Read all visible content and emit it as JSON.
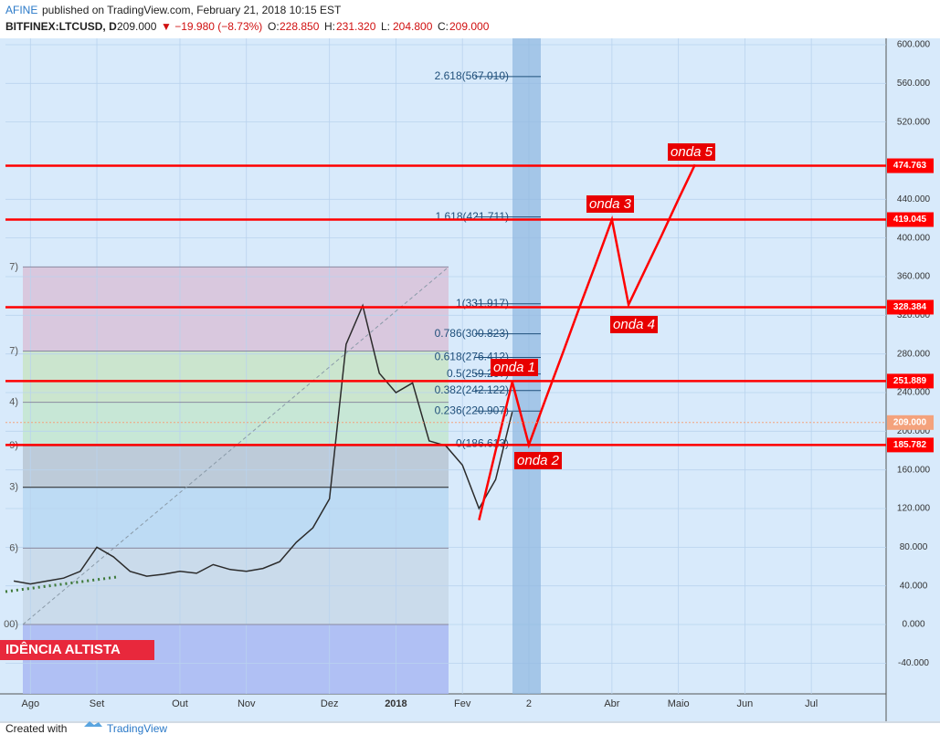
{
  "header": {
    "author": "AFINE",
    "published": "published on TradingView.com, February 21, 2018 10:15 EST",
    "symbol": "BITFINEX:LTCUSD, D",
    "price": "209.000",
    "change": "▼ −19.980 (−8.73%)",
    "ohlc": [
      {
        "key": "O:",
        "val": "228.850"
      },
      {
        "key": "H:",
        "val": "231.320"
      },
      {
        "key": "L:",
        "val": "204.800"
      },
      {
        "key": "C:",
        "val": "209.000"
      }
    ]
  },
  "footer": {
    "created": "Created with",
    "brand": "TradingView"
  },
  "chart_data": {
    "type": "line",
    "categories": [
      null,
      "Ago",
      null,
      null,
      null,
      "Set",
      null,
      null,
      null,
      null,
      "Out",
      null,
      null,
      null,
      "Nov",
      null,
      null,
      null,
      null,
      "Dez",
      null,
      null,
      null,
      "2018",
      null,
      null,
      null,
      "Fev",
      null,
      null,
      null,
      "2",
      null,
      null,
      null,
      null,
      "Abr",
      null,
      null,
      null,
      "Maio",
      null,
      null,
      null,
      "Jun",
      null,
      null,
      null,
      "Jul",
      null,
      null,
      null,
      null
    ],
    "series": [
      {
        "color": "#2b2b2b",
        "values": [
          45,
          42,
          45,
          48,
          55,
          80,
          70,
          55,
          50,
          52,
          55,
          53,
          62,
          57,
          55,
          58,
          65,
          85,
          100,
          130,
          290,
          330,
          260,
          240,
          250,
          190,
          185,
          165,
          120,
          150,
          220,
          null,
          null,
          null,
          null,
          null,
          null,
          null,
          null,
          null,
          null,
          null,
          null,
          null,
          null,
          null,
          null,
          null,
          null,
          null,
          null,
          null,
          null
        ]
      },
      {
        "color": "#ff0000",
        "values": [
          null,
          null,
          null,
          null,
          null,
          null,
          null,
          null,
          null,
          null,
          null,
          null,
          null,
          null,
          null,
          null,
          null,
          null,
          null,
          null,
          null,
          null,
          null,
          null,
          null,
          null,
          null,
          null,
          108,
          180,
          251,
          186,
          233,
          279,
          326,
          372,
          419,
          331,
          367,
          403,
          440,
          476,
          null,
          null,
          null,
          null,
          null,
          null,
          null,
          null,
          null,
          null,
          null
        ]
      }
    ],
    "ylim": [
      -71.8,
      606.6
    ],
    "yticks": [
      {
        "value": 600,
        "label": "600.000"
      },
      {
        "value": 560,
        "label": "560.000"
      },
      {
        "value": 520,
        "label": "520.000"
      },
      {
        "value": 440,
        "label": "440.000"
      },
      {
        "value": 400,
        "label": "400.000"
      },
      {
        "value": 360,
        "label": "360.000"
      },
      {
        "value": 320,
        "label": "320.000"
      },
      {
        "value": 280,
        "label": "280.000"
      },
      {
        "value": 240,
        "label": "240.000"
      },
      {
        "value": 200,
        "label": "200.000"
      },
      {
        "value": 160,
        "label": "160.000"
      },
      {
        "value": 120,
        "label": "120.000"
      },
      {
        "value": 80,
        "label": "80.000"
      },
      {
        "value": 40,
        "label": "40.000"
      },
      {
        "value": 0,
        "label": "0.000"
      },
      {
        "value": -40,
        "label": "-40.000"
      }
    ],
    "grid": true,
    "levels": [
      {
        "value": 474.763,
        "color": "#ff0000"
      },
      {
        "value": 419.045,
        "color": "#ff0000"
      },
      {
        "value": 328.384,
        "color": "#ff0000"
      },
      {
        "value": 251.889,
        "color": "#ff0000"
      },
      {
        "value": {
          "value": 209,
          "label": "209.000"
        },
        "color": "#f4a27c",
        "dashed": true
      },
      {
        "value": 185.782,
        "color": "#ff0000"
      }
    ],
    "fib_extension": [
      {
        "value": 567.01,
        "label": "2.618(567.010)"
      },
      {
        "value": 421.711,
        "label": "1.618(421.711)"
      },
      {
        "value": 331.917,
        "label": "1(331.917)"
      },
      {
        "value": 300.823,
        "label": "0.786(300.823)"
      },
      {
        "value": 276.412,
        "label": "0.618(276.412)"
      },
      {
        "value": 259.267,
        "label": "0.5(259.267)"
      },
      {
        "value": 242.122,
        "label": "0.382(242.122)"
      },
      {
        "value": 220.907,
        "label": "0.236(220.907)"
      },
      {
        "value": 186.613,
        "label": "0(186.613)"
      }
    ],
    "retracement": {
      "levels": [
        {
          "value": 370,
          "label": "7)"
        },
        {
          "value": 283,
          "label": "7)"
        },
        {
          "value": 230,
          "label": "4)"
        },
        {
          "value": 185,
          "label": "9)"
        },
        {
          "value": 142,
          "label": "3)"
        },
        {
          "value": 79,
          "label": "6)"
        },
        {
          "value": 0,
          "label": "00)"
        }
      ],
      "colors": [
        "#d9c2d8",
        "#c9e4c6",
        "#c4e6cf",
        "#b8c6d2",
        "#b8d8f2",
        "#c8d8e8",
        "#a9b9f2"
      ]
    },
    "annotations": [
      "onda 1",
      "onda 2",
      "onda 3",
      "onda 4",
      "onda 5"
    ],
    "banner": "IDÊNCIA ALTISTA"
  }
}
